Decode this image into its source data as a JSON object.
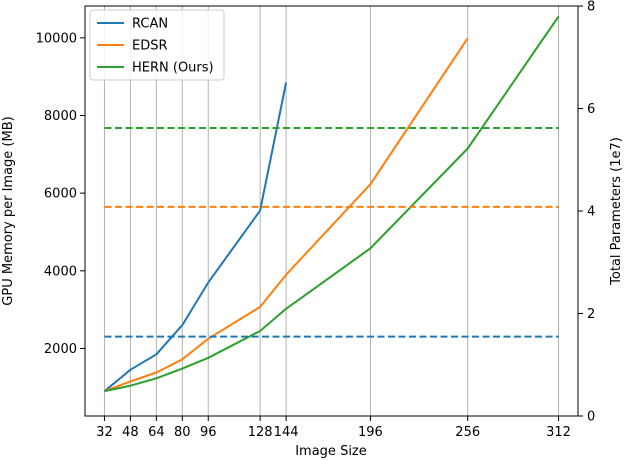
{
  "chart_data": {
    "type": "line",
    "xlabel": "Image Size",
    "ylabel": "GPU Memory per Image (MB)",
    "y2label": "Total Parameters (1e7)",
    "xlim": [
      20,
      324
    ],
    "ylim": [
      260,
      10820
    ],
    "y2lim": [
      0,
      8
    ],
    "x_ticks": [
      32,
      48,
      64,
      80,
      96,
      128,
      144,
      196,
      256,
      312
    ],
    "y_ticks": [
      2000,
      4000,
      6000,
      8000,
      10000
    ],
    "y2_ticks": [
      0,
      2,
      4,
      6,
      8
    ],
    "grid": true,
    "legend_position": "top-left",
    "series": [
      {
        "name": "RCAN",
        "color": "#1f77b4",
        "axis": "left",
        "style": "solid",
        "x": [
          32,
          48,
          64,
          80,
          96,
          128,
          144
        ],
        "y": [
          900,
          1450,
          1850,
          2600,
          3700,
          5550,
          8850
        ]
      },
      {
        "name": "EDSR",
        "color": "#ff7f0e",
        "axis": "left",
        "style": "solid",
        "x": [
          32,
          48,
          64,
          80,
          96,
          128,
          144,
          196,
          256
        ],
        "y": [
          900,
          1150,
          1380,
          1720,
          2250,
          3070,
          3900,
          6230,
          9990
        ]
      },
      {
        "name": "HERN (Ours)",
        "color": "#2ca02c",
        "axis": "left",
        "style": "solid",
        "x": [
          32,
          48,
          64,
          80,
          96,
          128,
          144,
          196,
          256,
          312
        ],
        "y": [
          900,
          1040,
          1230,
          1480,
          1760,
          2450,
          3020,
          4580,
          7150,
          10550
        ]
      },
      {
        "axis": "right",
        "style": "dashed",
        "color": "#1f77b4",
        "x": [
          32,
          312
        ],
        "y": [
          1.55,
          1.55
        ]
      },
      {
        "axis": "right",
        "style": "dashed",
        "color": "#ff7f0e",
        "x": [
          32,
          312
        ],
        "y": [
          4.08,
          4.08
        ]
      },
      {
        "axis": "right",
        "style": "dashed",
        "color": "#2ca02c",
        "x": [
          32,
          312
        ],
        "y": [
          5.62,
          5.62
        ]
      }
    ]
  }
}
